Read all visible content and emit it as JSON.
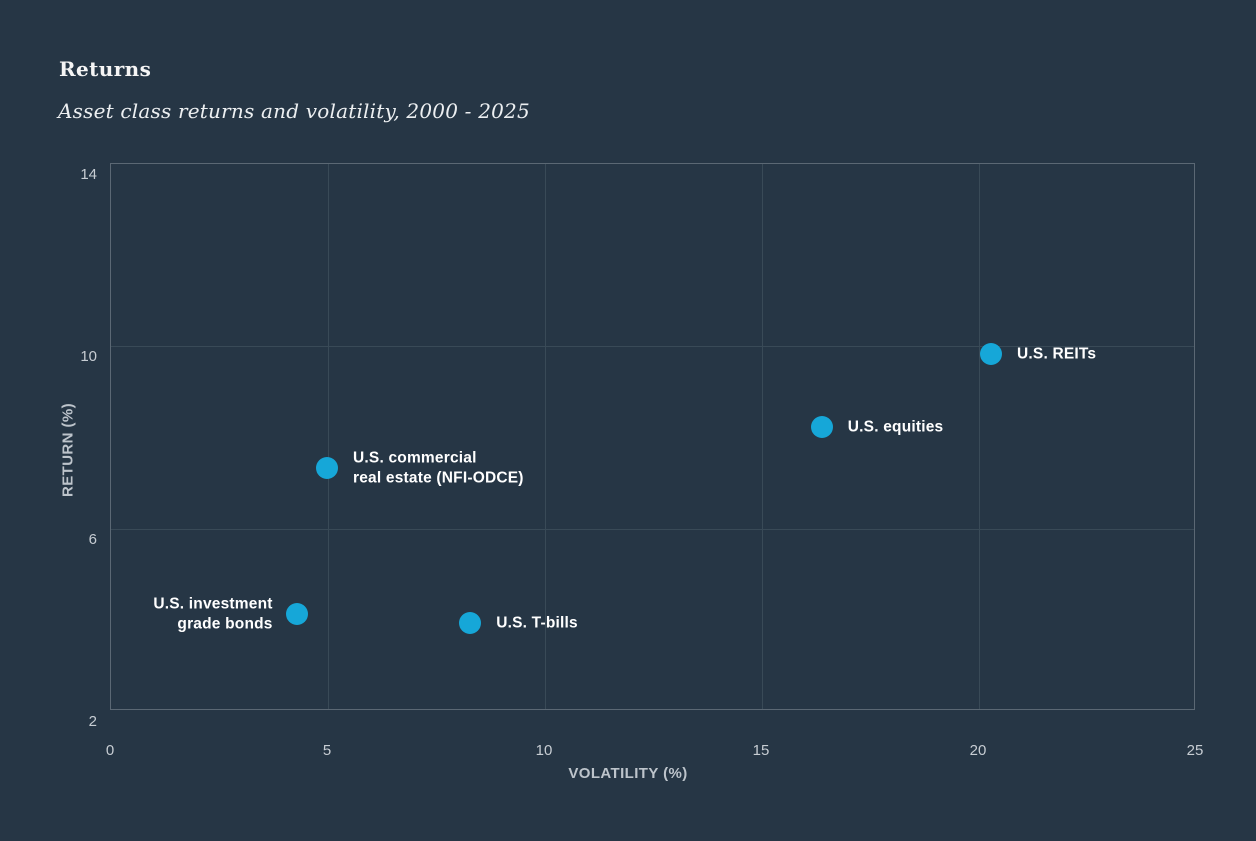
{
  "page": {
    "background_color": "#263645"
  },
  "header": {
    "title": "Returns",
    "subtitle": "Asset class returns and volatility, 2000 - 2025"
  },
  "colors": {
    "marker": "#16a7d8",
    "gridline": "#394a57",
    "axis_border": "#5b6874",
    "tick_text": "#c7cdd3",
    "axis_title_text": "#bdc4cb",
    "point_label_text": "#ffffff",
    "title_text": "#f5f5f5"
  },
  "chart_data": {
    "type": "scatter",
    "title": "Returns",
    "subtitle": "Asset class returns and volatility, 2000 - 2025",
    "xlabel": "VOLATILITY (%)",
    "ylabel": "RETURN (%)",
    "xlim": [
      0,
      25
    ],
    "ylim": [
      2,
      14
    ],
    "x_ticks": [
      0,
      5,
      10,
      15,
      20,
      25
    ],
    "y_ticks": [
      2,
      6,
      10,
      14
    ],
    "grid": true,
    "legend": false,
    "points": [
      {
        "name": "U.S. REITs",
        "x": 20.3,
        "y": 9.8,
        "label_lines": [
          "U.S. REITs"
        ],
        "label_side": "right"
      },
      {
        "name": "U.S. equities",
        "x": 16.4,
        "y": 8.2,
        "label_lines": [
          "U.S. equities"
        ],
        "label_side": "right"
      },
      {
        "name": "U.S. commercial real estate (NFI-ODCE)",
        "x": 5.0,
        "y": 7.3,
        "label_lines": [
          "U.S. commercial",
          "real estate (NFI-ODCE)"
        ],
        "label_side": "right"
      },
      {
        "name": "U.S. investment grade bonds",
        "x": 4.3,
        "y": 4.1,
        "label_lines": [
          "U.S. investment",
          "grade bonds"
        ],
        "label_side": "left"
      },
      {
        "name": "U.S. T-bills",
        "x": 8.3,
        "y": 3.9,
        "label_lines": [
          "U.S. T-bills"
        ],
        "label_side": "right"
      }
    ]
  }
}
